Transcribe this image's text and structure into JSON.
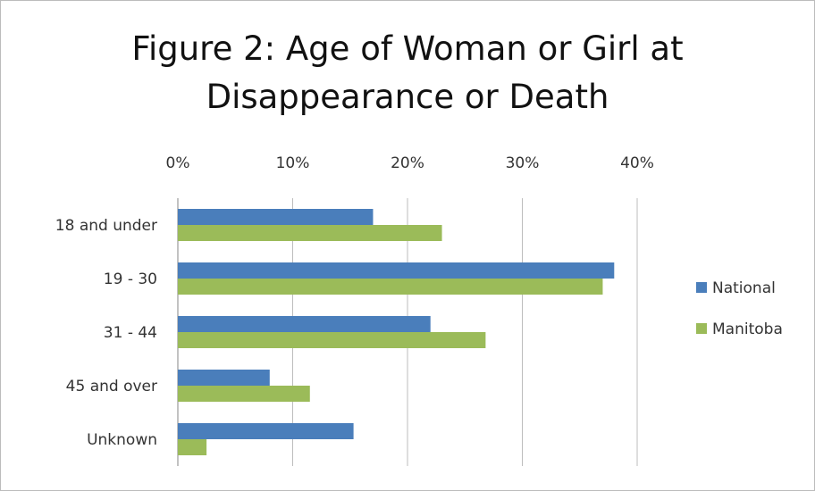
{
  "chart_data": {
    "type": "bar",
    "orientation": "horizontal",
    "title": "Figure 2: Age of Woman or Girl at\nDisappearance or Death",
    "categories": [
      "18 and under",
      "19 - 30",
      "31 - 44",
      "45 and over",
      "Unknown"
    ],
    "series": [
      {
        "name": "National",
        "color": "#4a7ebb",
        "values": [
          17,
          38,
          22,
          8,
          15.3
        ]
      },
      {
        "name": "Manitoba",
        "color": "#9bbb59",
        "values": [
          23,
          37,
          26.8,
          11.5,
          2.5
        ]
      }
    ],
    "xlim": [
      0,
      40
    ],
    "x_ticks": [
      "0%",
      "10%",
      "20%",
      "30%",
      "40%"
    ],
    "x_tick_values": [
      0,
      10,
      20,
      30,
      40
    ],
    "x_axis_position": "top",
    "grid": "vertical",
    "legend_position": "right"
  }
}
